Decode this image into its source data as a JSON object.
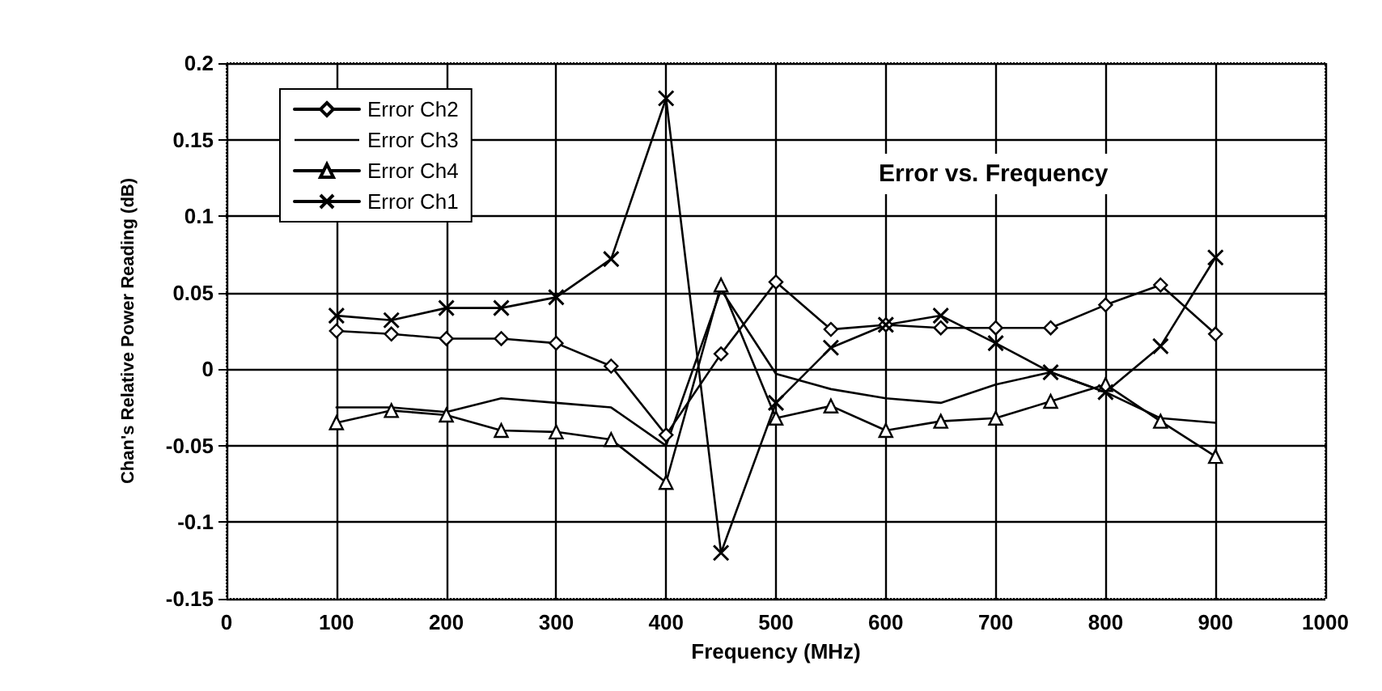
{
  "chart_data": {
    "type": "line",
    "title": "Error vs. Frequency",
    "xlabel": "Frequency (MHz)",
    "ylabel": "Chan's Relative Power Reading (dB)",
    "x": [
      100,
      150,
      200,
      250,
      300,
      350,
      400,
      450,
      500,
      550,
      600,
      650,
      700,
      750,
      800,
      850,
      900
    ],
    "series": [
      {
        "name": "Error Ch2",
        "color": "#000000",
        "marker": "diamond",
        "values": [
          0.025,
          0.023,
          0.02,
          0.02,
          0.017,
          0.002,
          -0.043,
          0.01,
          0.057,
          0.026,
          0.029,
          0.027,
          0.027,
          0.027,
          0.042,
          0.055,
          0.023
        ]
      },
      {
        "name": "Error Ch3",
        "color": "#000000",
        "marker": "none",
        "values": [
          -0.025,
          -0.025,
          -0.028,
          -0.019,
          -0.022,
          -0.025,
          -0.05,
          0.052,
          -0.003,
          -0.013,
          -0.019,
          -0.022,
          -0.01,
          -0.002,
          -0.015,
          -0.032,
          -0.035
        ]
      },
      {
        "name": "Error Ch4",
        "color": "#000000",
        "marker": "triangle",
        "values": [
          -0.035,
          -0.027,
          -0.03,
          -0.04,
          -0.041,
          -0.046,
          -0.074,
          0.055,
          -0.032,
          -0.024,
          -0.04,
          -0.034,
          -0.032,
          -0.021,
          -0.01,
          -0.034,
          -0.057
        ]
      },
      {
        "name": "Error Ch1",
        "color": "#000000",
        "marker": "cross",
        "values": [
          0.035,
          0.032,
          0.04,
          0.04,
          0.047,
          0.072,
          0.177,
          -0.12,
          -0.022,
          0.014,
          0.029,
          0.035,
          0.017,
          -0.002,
          -0.015,
          0.015,
          0.073
        ]
      }
    ],
    "xlim": [
      0,
      1000
    ],
    "xticks": [
      0,
      100,
      200,
      300,
      400,
      500,
      600,
      700,
      800,
      900,
      1000
    ],
    "ylim": [
      -0.15,
      0.2
    ],
    "yticks": [
      -0.15,
      -0.1,
      -0.05,
      0,
      0.05,
      0.1,
      0.15,
      0.2
    ],
    "grid": true,
    "legend": "top left",
    "line_style": "solid"
  }
}
